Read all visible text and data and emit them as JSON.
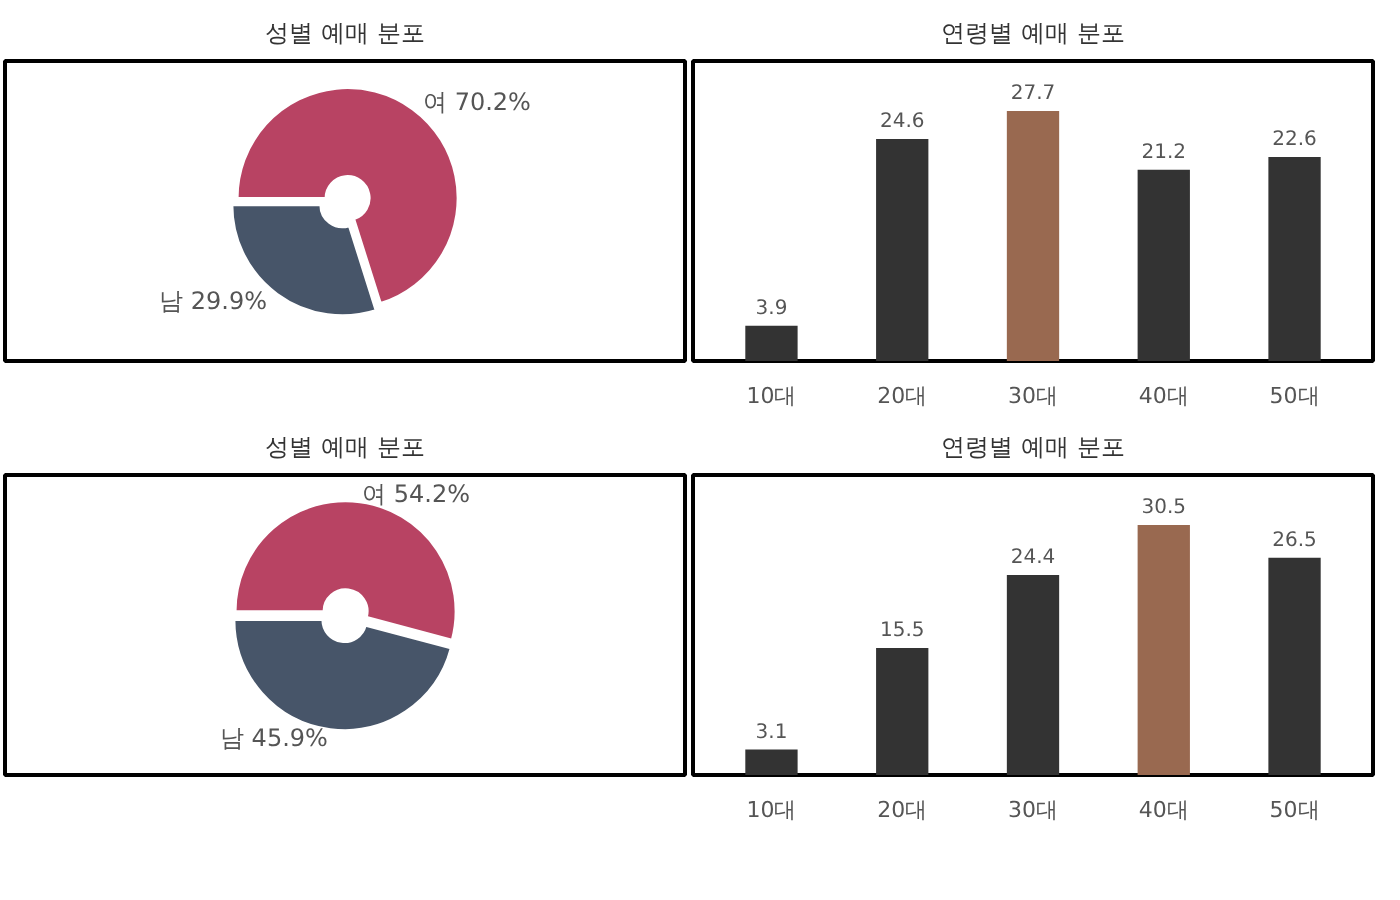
{
  "chart_data": [
    {
      "type": "donut",
      "title": "성별 예매 분포",
      "categories": [
        "여",
        "남"
      ],
      "values": [
        70.2,
        29.9
      ],
      "colors": [
        "#b84363",
        "#475569"
      ],
      "value_labels": [
        "70.2%",
        "29.9%"
      ]
    },
    {
      "type": "bar",
      "title": "연령별 예매 분포",
      "categories": [
        "10대",
        "20대",
        "30대",
        "40대",
        "50대"
      ],
      "values": [
        3.9,
        24.6,
        27.7,
        21.2,
        22.6
      ],
      "colors": [
        "#333333",
        "#333333",
        "#996950",
        "#333333",
        "#333333"
      ],
      "data_labels": true
    },
    {
      "type": "donut",
      "title": "성별 예매 분포",
      "categories": [
        "여",
        "남"
      ],
      "values": [
        54.2,
        45.9
      ],
      "colors": [
        "#b84363",
        "#475569"
      ],
      "value_labels": [
        "54.2%",
        "45.9%"
      ]
    },
    {
      "type": "bar",
      "title": "연령별 예매 분포",
      "categories": [
        "10대",
        "20대",
        "30대",
        "40대",
        "50대"
      ],
      "values": [
        3.1,
        15.5,
        24.4,
        30.5,
        26.5
      ],
      "colors": [
        "#333333",
        "#333333",
        "#333333",
        "#996950",
        "#333333"
      ],
      "data_labels": true
    }
  ]
}
